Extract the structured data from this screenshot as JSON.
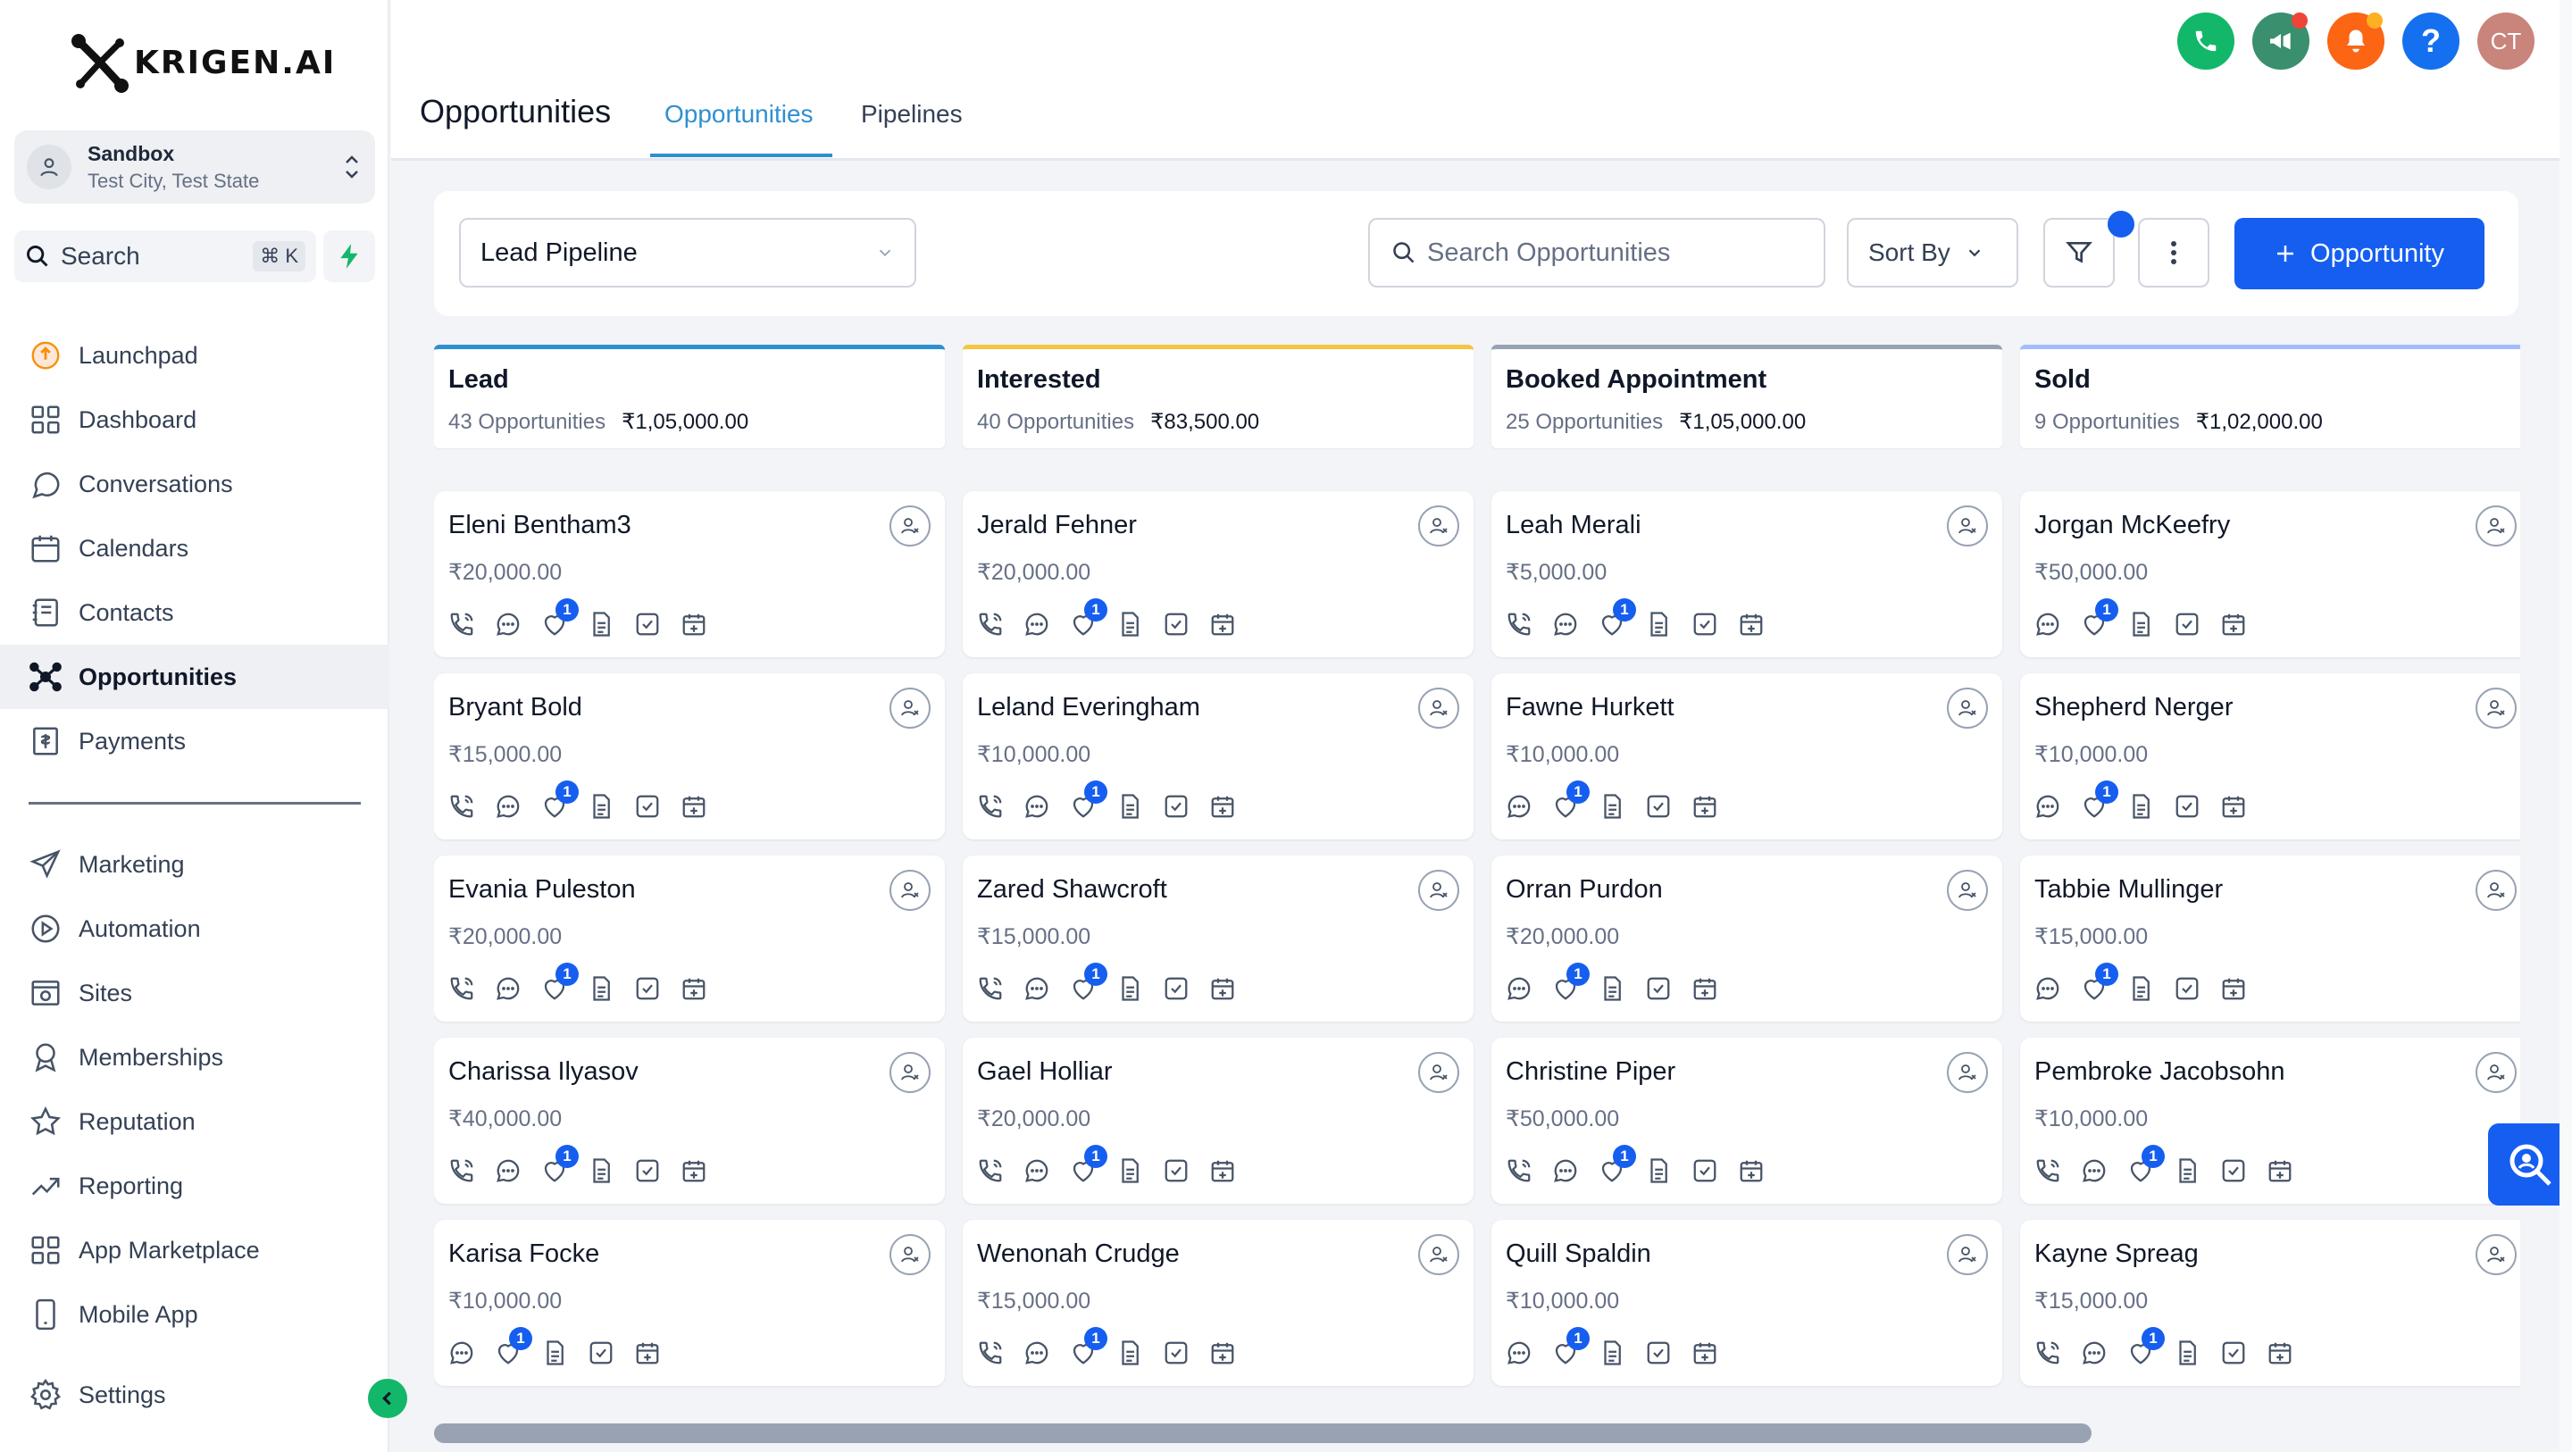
{
  "brand": {
    "name": "KRIGEN.AI"
  },
  "account": {
    "name": "Sandbox",
    "location": "Test City, Test State"
  },
  "sidebar": {
    "search_label": "Search",
    "search_shortcut": "⌘ K",
    "items": [
      {
        "label": "Launchpad",
        "icon": "launchpad-icon"
      },
      {
        "label": "Dashboard",
        "icon": "dashboard-icon"
      },
      {
        "label": "Conversations",
        "icon": "chat-icon"
      },
      {
        "label": "Calendars",
        "icon": "calendar-icon"
      },
      {
        "label": "Contacts",
        "icon": "contacts-icon"
      },
      {
        "label": "Opportunities",
        "icon": "opportunities-icon",
        "active": true
      },
      {
        "label": "Payments",
        "icon": "payments-icon"
      }
    ],
    "items2": [
      {
        "label": "Marketing",
        "icon": "send-icon"
      },
      {
        "label": "Automation",
        "icon": "automation-icon"
      },
      {
        "label": "Sites",
        "icon": "sites-icon"
      },
      {
        "label": "Memberships",
        "icon": "membership-icon"
      },
      {
        "label": "Reputation",
        "icon": "star-icon"
      },
      {
        "label": "Reporting",
        "icon": "trend-icon"
      },
      {
        "label": "App Marketplace",
        "icon": "grid-icon"
      },
      {
        "label": "Mobile App",
        "icon": "mobile-icon"
      }
    ],
    "settings_label": "Settings"
  },
  "header": {
    "title": "Opportunities",
    "tabs": [
      {
        "label": "Opportunities",
        "active": true
      },
      {
        "label": "Pipelines"
      }
    ],
    "avatar_initials": "CT"
  },
  "toolbar": {
    "pipeline": "Lead Pipeline",
    "search_placeholder": "Search Opportunities",
    "sort_label": "Sort By",
    "add_label": "Opportunity"
  },
  "colors": {
    "accent": "#155eef",
    "lead": "#2e90d0",
    "interested": "#f5c542",
    "booked": "#98a2b3",
    "sold": "#a4bcfd"
  },
  "columns": [
    {
      "title": "Lead",
      "count": "43 Opportunities",
      "amount": "₹1,05,000.00",
      "color": "#2e90d0",
      "cards": [
        {
          "name": "Eleni Bentham3",
          "value": "₹20,000.00",
          "icons": [
            "phone",
            "chat",
            "tag",
            "doc",
            "check",
            "cal"
          ]
        },
        {
          "name": "Bryant Bold",
          "value": "₹15,000.00",
          "icons": [
            "phone",
            "chat",
            "tag",
            "doc",
            "check",
            "cal"
          ]
        },
        {
          "name": "Evania Puleston",
          "value": "₹20,000.00",
          "icons": [
            "phone",
            "chat",
            "tag",
            "doc",
            "check",
            "cal"
          ]
        },
        {
          "name": "Charissa Ilyasov",
          "value": "₹40,000.00",
          "icons": [
            "phone",
            "chat",
            "tag",
            "doc",
            "check",
            "cal"
          ]
        },
        {
          "name": "Karisa Focke",
          "value": "₹10,000.00",
          "icons": [
            "chat",
            "tag",
            "doc",
            "check",
            "cal"
          ]
        }
      ]
    },
    {
      "title": "Interested",
      "count": "40 Opportunities",
      "amount": "₹83,500.00",
      "color": "#f5c542",
      "cards": [
        {
          "name": "Jerald Fehner",
          "value": "₹20,000.00",
          "icons": [
            "phone",
            "chat",
            "tag",
            "doc",
            "check",
            "cal"
          ]
        },
        {
          "name": "Leland Everingham",
          "value": "₹10,000.00",
          "icons": [
            "phone",
            "chat",
            "tag",
            "doc",
            "check",
            "cal"
          ]
        },
        {
          "name": "Zared Shawcroft",
          "value": "₹15,000.00",
          "icons": [
            "phone",
            "chat",
            "tag",
            "doc",
            "check",
            "cal"
          ]
        },
        {
          "name": "Gael Holliar",
          "value": "₹20,000.00",
          "icons": [
            "phone",
            "chat",
            "tag",
            "doc",
            "check",
            "cal"
          ]
        },
        {
          "name": "Wenonah Crudge",
          "value": "₹15,000.00",
          "icons": [
            "phone",
            "chat",
            "tag",
            "doc",
            "check",
            "cal"
          ]
        }
      ]
    },
    {
      "title": "Booked Appointment",
      "count": "25 Opportunities",
      "amount": "₹1,05,000.00",
      "color": "#98a2b3",
      "cards": [
        {
          "name": "Leah Merali",
          "value": "₹5,000.00",
          "icons": [
            "phone",
            "chat",
            "tag",
            "doc",
            "check",
            "cal"
          ]
        },
        {
          "name": "Fawne Hurkett",
          "value": "₹10,000.00",
          "icons": [
            "chat",
            "tag",
            "doc",
            "check",
            "cal"
          ]
        },
        {
          "name": "Orran Purdon",
          "value": "₹20,000.00",
          "icons": [
            "chat",
            "tag",
            "doc",
            "check",
            "cal"
          ]
        },
        {
          "name": "Christine Piper",
          "value": "₹50,000.00",
          "icons": [
            "phone",
            "chat",
            "tag",
            "doc",
            "check",
            "cal"
          ]
        },
        {
          "name": "Quill Spaldin",
          "value": "₹10,000.00",
          "icons": [
            "chat",
            "tag",
            "doc",
            "check",
            "cal"
          ]
        }
      ]
    },
    {
      "title": "Sold",
      "count": "9 Opportunities",
      "amount": "₹1,02,000.00",
      "color": "#a4bcfd",
      "cards": [
        {
          "name": "Jorgan McKeefry",
          "value": "₹50,000.00",
          "icons": [
            "chat",
            "tag",
            "doc",
            "check",
            "cal"
          ]
        },
        {
          "name": "Shepherd Nerger",
          "value": "₹10,000.00",
          "icons": [
            "chat",
            "tag",
            "doc",
            "check",
            "cal"
          ]
        },
        {
          "name": "Tabbie Mullinger",
          "value": "₹15,000.00",
          "icons": [
            "chat",
            "tag",
            "doc",
            "check",
            "cal"
          ]
        },
        {
          "name": "Pembroke Jacobsohn",
          "value": "₹10,000.00",
          "icons": [
            "phone",
            "chat",
            "tag",
            "doc",
            "check",
            "cal"
          ]
        },
        {
          "name": "Kayne Spreag",
          "value": "₹15,000.00",
          "icons": [
            "phone",
            "chat",
            "tag",
            "doc",
            "check",
            "cal"
          ]
        }
      ]
    }
  ],
  "tag_badge_count": "1"
}
